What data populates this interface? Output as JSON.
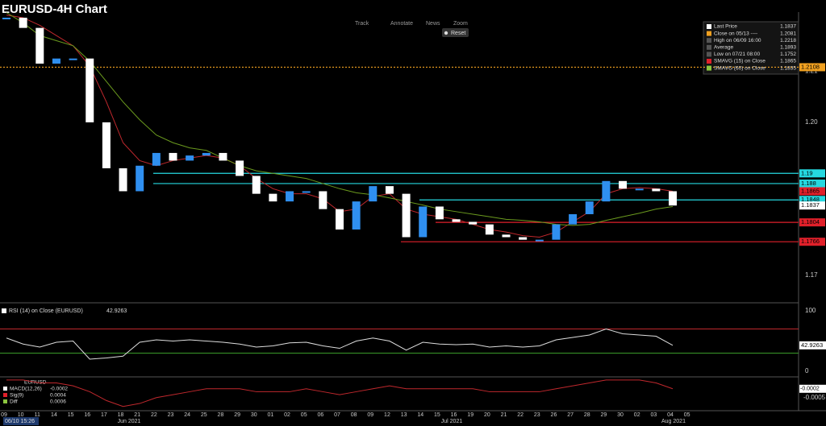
{
  "chart_data": {
    "type": "candlestick",
    "title": "EURUSD-4H Chart",
    "toolbar": [
      "Track",
      "Annotate",
      "News",
      "Zoom"
    ],
    "reset": "Reset",
    "timestamp": "06/10 15:26",
    "categories": [
      "09",
      "10",
      "11",
      "14",
      "15",
      "16",
      "17",
      "18",
      "21",
      "22",
      "23",
      "24",
      "25",
      "28",
      "29",
      "30",
      "01",
      "02",
      "05",
      "06",
      "07",
      "08",
      "09",
      "12",
      "13",
      "14",
      "15",
      "16",
      "19",
      "20",
      "21",
      "22",
      "23",
      "26",
      "27",
      "28",
      "29",
      "30",
      "02",
      "03",
      "04",
      "05"
    ],
    "months": [
      "Jun 2021",
      "Jul 2021",
      "Aug 2021"
    ],
    "ylim": [
      1.1648,
      1.2216
    ],
    "yticks": [
      1.17,
      {
        "value": 1.2,
        "label": "1.20"
      },
      1.21
    ],
    "series": [
      {
        "name": "EURUSD",
        "up_color": "#2f8ff0",
        "down_color": "#ffffff",
        "values": [
          1.2205,
          1.2185,
          1.2115,
          1.2125,
          1.2125,
          1.2,
          1.191,
          1.1865,
          1.1915,
          1.194,
          1.1925,
          1.1935,
          1.194,
          1.1925,
          1.1895,
          1.186,
          1.1845,
          1.1865,
          1.1865,
          1.183,
          1.179,
          1.1845,
          1.1875,
          1.186,
          1.1775,
          1.1835,
          1.181,
          1.1805,
          1.18,
          1.178,
          1.1775,
          1.177,
          1.177,
          1.18,
          1.182,
          1.1845,
          1.1885,
          1.187,
          1.187,
          1.1865,
          1.1837,
          null
        ]
      },
      {
        "name": "SMAVG (15) on Close",
        "color": "#c0282d",
        "values": [
          1.221,
          1.2205,
          1.219,
          1.217,
          1.215,
          1.211,
          1.204,
          1.196,
          1.1925,
          1.1915,
          1.1925,
          1.193,
          1.1935,
          1.193,
          1.1915,
          1.189,
          1.187,
          1.186,
          1.186,
          1.185,
          1.1825,
          1.183,
          1.1855,
          1.186,
          1.183,
          1.182,
          1.1815,
          1.181,
          1.18,
          1.179,
          1.1785,
          1.1778,
          1.1775,
          1.1785,
          1.1805,
          1.1825,
          1.186,
          1.187,
          1.1872,
          1.187,
          1.1865,
          null
        ]
      },
      {
        "name": "SMAVG (60) on Close",
        "color": "#6b9a1e",
        "values": [
          1.2215,
          1.2195,
          1.217,
          1.216,
          1.215,
          1.212,
          1.208,
          1.204,
          1.2005,
          1.1975,
          1.196,
          1.195,
          1.1945,
          1.193,
          1.1915,
          1.1905,
          1.19,
          1.1895,
          1.189,
          1.188,
          1.187,
          1.1862,
          1.1858,
          1.1852,
          1.1845,
          1.1838,
          1.183,
          1.1825,
          1.182,
          1.1815,
          1.181,
          1.1808,
          1.1805,
          1.18,
          1.1798,
          1.18,
          1.1808,
          1.1815,
          1.1822,
          1.183,
          1.1835,
          null
        ]
      }
    ],
    "legend": [
      {
        "label": "Last Price",
        "value": 1.1837,
        "color": "#ffffff"
      },
      {
        "label": "Close on 05/13 ----",
        "value": 1.2081,
        "color": "#f0a020"
      },
      {
        "label": "High on 06/09 16:00",
        "value": 1.2218,
        "color": "#555555"
      },
      {
        "label": "Average",
        "value": 1.1893,
        "color": "#555555"
      },
      {
        "label": "Low on 07/21 08:00",
        "value": 1.1752,
        "color": "#555555"
      },
      {
        "label": "SMAVG (15) on Close",
        "value": 1.1865,
        "color": "#e0202a"
      },
      {
        "label": "SMAVG (60) on Close",
        "value": 1.1835,
        "color": "#8cc63f"
      }
    ],
    "levels": [
      {
        "value": 1.2108,
        "color": "#f0a020"
      },
      {
        "value": 1.19,
        "color": "#25d8e0"
      },
      {
        "value": 1.188,
        "color": "#25d8e0"
      },
      {
        "value": 1.1848,
        "color": "#25d8e0"
      },
      {
        "value": 1.1804,
        "color": "#e0202a"
      },
      {
        "value": 1.1766,
        "color": "#e0202a"
      }
    ],
    "price_tags": [
      {
        "value": 1.1865,
        "color": "#e0202a"
      },
      {
        "value": 1.1837,
        "color": "#ffffff"
      }
    ],
    "rsi": {
      "label": "RSI (14) on Close (EURUSD)",
      "last": 42.9263,
      "ylim": [
        -9.3,
        110.7
      ],
      "yticks": [
        0,
        100
      ],
      "upper": 70,
      "lower": 30,
      "values": [
        55,
        45,
        40,
        48,
        50,
        20,
        22,
        25,
        48,
        52,
        50,
        52,
        50,
        48,
        45,
        40,
        42,
        47,
        48,
        42,
        38,
        50,
        55,
        50,
        35,
        48,
        45,
        44,
        45,
        40,
        42,
        40,
        42,
        52,
        56,
        60,
        70,
        62,
        60,
        58,
        43,
        null
      ]
    },
    "macd": {
      "title": "EURUSD",
      "ylim": [
        -0.001,
        0.00015
      ],
      "yticks": [
        -0.0005
      ],
      "tag": -0.0002,
      "color": "#c0282d",
      "items": [
        {
          "label": "MACD(12,26)",
          "value": -0.0002,
          "color": "#ffffff"
        },
        {
          "label": "Sig(9)",
          "value": 0.0004,
          "color": "#e0202a"
        },
        {
          "label": "Diff",
          "value": 0.0006,
          "color": "#8cc63f"
        }
      ],
      "values": [
        0.0001,
        0.0001,
        0,
        0,
        -0.0001,
        -0.0003,
        -0.0006,
        -0.0008,
        -0.0007,
        -0.0005,
        -0.0004,
        -0.0003,
        -0.0002,
        -0.0002,
        -0.0002,
        -0.0003,
        -0.0003,
        -0.0003,
        -0.0002,
        -0.0003,
        -0.0004,
        -0.0003,
        -0.0002,
        -0.0001,
        -0.0002,
        -0.0002,
        -0.0002,
        -0.0002,
        -0.0002,
        -0.0003,
        -0.0003,
        -0.0003,
        -0.0003,
        -0.0002,
        -0.0001,
        0,
        0.0001,
        0.0001,
        0.0001,
        0,
        -0.0002,
        null
      ]
    }
  }
}
